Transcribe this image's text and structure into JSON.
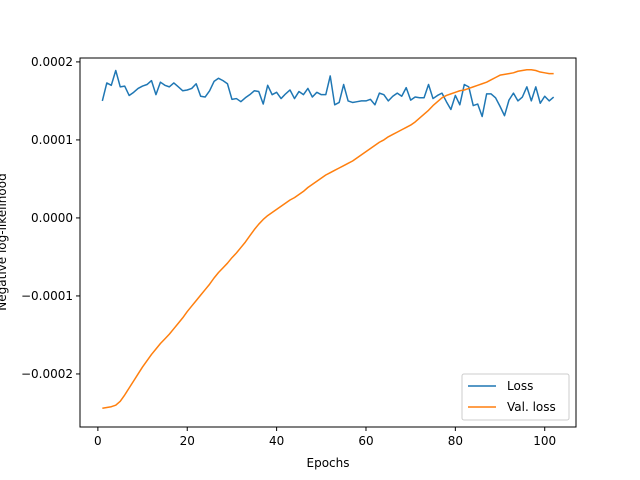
{
  "chart_data": {
    "type": "line",
    "xlabel": "Epochs",
    "ylabel": "Negative log-likelihood",
    "xlim": [
      -4,
      107
    ],
    "ylim": [
      -0.000268,
      0.000205
    ],
    "xticks": [
      0,
      20,
      40,
      60,
      80,
      100
    ],
    "xtick_labels": [
      "0",
      "20",
      "40",
      "60",
      "80",
      "100"
    ],
    "yticks": [
      -0.0002,
      -0.0001,
      0.0,
      0.0001,
      0.0002
    ],
    "ytick_labels": [
      "−0.0002",
      "−0.0001",
      "0.0000",
      "0.0001",
      "0.0002"
    ],
    "grid": false,
    "legend_position": "lower-right",
    "series": [
      {
        "name": "Loss",
        "color": "#1f77b4",
        "x": [
          1,
          2,
          3,
          4,
          5,
          6,
          7,
          8,
          9,
          10,
          11,
          12,
          13,
          14,
          15,
          16,
          17,
          18,
          19,
          20,
          21,
          22,
          23,
          24,
          25,
          26,
          27,
          28,
          29,
          30,
          31,
          32,
          33,
          34,
          35,
          36,
          37,
          38,
          39,
          40,
          41,
          42,
          43,
          44,
          45,
          46,
          47,
          48,
          49,
          50,
          51,
          52,
          53,
          54,
          55,
          56,
          57,
          58,
          59,
          60,
          61,
          62,
          63,
          64,
          65,
          66,
          67,
          68,
          69,
          70,
          71,
          72,
          73,
          74,
          75,
          76,
          77,
          78,
          79,
          80,
          81,
          82,
          83,
          84,
          85,
          86,
          87,
          88,
          89,
          90,
          91,
          92,
          93,
          94,
          95,
          96,
          97,
          98,
          99,
          100,
          101,
          102
        ],
        "y": [
          0.00015,
          0.000173,
          0.00017,
          0.000189,
          0.000168,
          0.000169,
          0.000157,
          0.000161,
          0.000166,
          0.000169,
          0.000171,
          0.000176,
          0.000158,
          0.000174,
          0.00017,
          0.000168,
          0.000173,
          0.000168,
          0.000163,
          0.000164,
          0.000166,
          0.000172,
          0.000156,
          0.000155,
          0.000163,
          0.000175,
          0.000179,
          0.000176,
          0.000172,
          0.000152,
          0.000153,
          0.000149,
          0.000154,
          0.000158,
          0.000163,
          0.000162,
          0.000146,
          0.00017,
          0.000158,
          0.000161,
          0.000153,
          0.000159,
          0.000164,
          0.000153,
          0.000162,
          0.000158,
          0.000166,
          0.000155,
          0.000161,
          0.000158,
          0.000158,
          0.000182,
          0.000145,
          0.000148,
          0.000171,
          0.00015,
          0.000148,
          0.000149,
          0.00015,
          0.00015,
          0.000152,
          0.000145,
          0.00016,
          0.000158,
          0.00015,
          0.000156,
          0.00016,
          0.000156,
          0.000167,
          0.000151,
          0.000155,
          0.000154,
          0.000154,
          0.000171,
          0.000153,
          0.000157,
          0.00016,
          0.000149,
          0.000139,
          0.000157,
          0.000145,
          0.000171,
          0.000168,
          0.000144,
          0.000146,
          0.00013,
          0.000159,
          0.000159,
          0.000154,
          0.000143,
          0.000131,
          0.000151,
          0.00016,
          0.00015,
          0.000155,
          0.000168,
          0.00015,
          0.000168,
          0.000147,
          0.000156,
          0.00015,
          0.000155
        ]
      },
      {
        "name": "Val. loss",
        "color": "#ff7f0e",
        "x": [
          1,
          2,
          3,
          4,
          5,
          6,
          7,
          8,
          9,
          10,
          11,
          12,
          13,
          14,
          15,
          16,
          17,
          18,
          19,
          20,
          21,
          22,
          23,
          24,
          25,
          26,
          27,
          28,
          29,
          30,
          31,
          32,
          33,
          34,
          35,
          36,
          37,
          38,
          39,
          40,
          41,
          42,
          43,
          44,
          45,
          46,
          47,
          48,
          49,
          50,
          51,
          52,
          53,
          54,
          55,
          56,
          57,
          58,
          59,
          60,
          61,
          62,
          63,
          64,
          65,
          66,
          67,
          68,
          69,
          70,
          71,
          72,
          73,
          74,
          75,
          76,
          77,
          78,
          79,
          80,
          81,
          82,
          83,
          84,
          85,
          86,
          87,
          88,
          89,
          90,
          91,
          92,
          93,
          94,
          95,
          96,
          97,
          98,
          99,
          100,
          101,
          102
        ],
        "y": [
          -0.000244,
          -0.000243,
          -0.000242,
          -0.00024,
          -0.000235,
          -0.000227,
          -0.000218,
          -0.000209,
          -0.0002,
          -0.000191,
          -0.000183,
          -0.000175,
          -0.000168,
          -0.000161,
          -0.000155,
          -0.000149,
          -0.000142,
          -0.000135,
          -0.000128,
          -0.00012,
          -0.000113,
          -0.000106,
          -9.9e-05,
          -9.2e-05,
          -8.5e-05,
          -7.7e-05,
          -7e-05,
          -6.4e-05,
          -5.8e-05,
          -5.1e-05,
          -4.5e-05,
          -3.8e-05,
          -3.1e-05,
          -2.3e-05,
          -1.5e-05,
          -8e-06,
          -2e-06,
          3e-06,
          7e-06,
          1.1e-05,
          1.5e-05,
          1.9e-05,
          2.3e-05,
          2.6e-05,
          3e-05,
          3.4e-05,
          3.9e-05,
          4.3e-05,
          4.7e-05,
          5.1e-05,
          5.5e-05,
          5.8e-05,
          6.1e-05,
          6.4e-05,
          6.7e-05,
          7e-05,
          7.3e-05,
          7.7e-05,
          8.1e-05,
          8.5e-05,
          8.9e-05,
          9.3e-05,
          9.7e-05,
          0.0001,
          0.000104,
          0.000107,
          0.00011,
          0.000113,
          0.000116,
          0.000119,
          0.000123,
          0.000128,
          0.000133,
          0.000138,
          0.000144,
          0.000149,
          0.000154,
          0.000157,
          0.000159,
          0.000161,
          0.000163,
          0.000164,
          0.000166,
          0.000168,
          0.00017,
          0.000172,
          0.000174,
          0.000177,
          0.00018,
          0.000183,
          0.000184,
          0.000185,
          0.000186,
          0.000188,
          0.000189,
          0.00019,
          0.00019,
          0.000189,
          0.000187,
          0.000186,
          0.000185,
          0.000185
        ]
      }
    ]
  }
}
